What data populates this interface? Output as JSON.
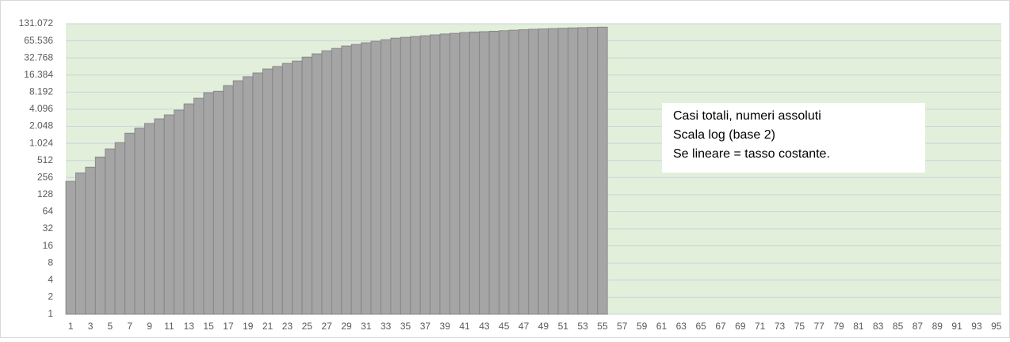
{
  "chart_data": {
    "type": "bar",
    "categories": [
      "1",
      null,
      "3",
      null,
      "5",
      null,
      "7",
      null,
      "9",
      null,
      "11",
      null,
      "13",
      null,
      "15",
      null,
      "17",
      null,
      "19",
      null,
      "21",
      null,
      "23",
      null,
      "25",
      null,
      "27",
      null,
      "29",
      null,
      "31",
      null,
      "33",
      null,
      "35",
      null,
      "37",
      null,
      "39",
      null,
      "41",
      null,
      "43",
      null,
      "45",
      null,
      "47",
      null,
      "49",
      null,
      "51",
      null,
      "53",
      null,
      "55",
      null,
      "57",
      null,
      "59",
      null,
      "61",
      null,
      "63",
      null,
      "65",
      null,
      "67",
      null,
      "69",
      null,
      "71",
      null,
      "73",
      null,
      "75",
      null,
      "77",
      null,
      "79",
      null,
      "81",
      null,
      "83",
      null,
      "85",
      null,
      "87",
      null,
      "89",
      null,
      "91",
      null,
      "93",
      null,
      "95"
    ],
    "values": [
      220,
      310,
      390,
      590,
      820,
      1060,
      1550,
      1900,
      2300,
      2780,
      3260,
      3950,
      5100,
      6400,
      8000,
      8500,
      10700,
      13000,
      15300,
      17900,
      21000,
      23200,
      26300,
      28900,
      33900,
      38700,
      43900,
      48300,
      53300,
      56700,
      60700,
      64600,
      68800,
      73300,
      75700,
      78300,
      80800,
      83600,
      86600,
      89000,
      92000,
      94000,
      95300,
      97000,
      99000,
      101000,
      103000,
      105000,
      106500,
      108000,
      109500,
      111000,
      112000,
      113000,
      114500,
      null,
      null,
      null,
      null,
      null,
      null,
      null,
      null,
      null,
      null,
      null,
      null,
      null,
      null,
      null,
      null,
      null,
      null,
      null,
      null,
      null,
      null,
      null,
      null,
      null,
      null,
      null,
      null,
      null,
      null,
      null,
      null,
      null,
      null,
      null,
      null,
      null,
      null,
      null,
      null
    ],
    "color": "#a5a5a5",
    "yscale": "log",
    "log_base": 2,
    "ylim": [
      1,
      131072
    ],
    "yticks": [
      1,
      2,
      4,
      8,
      16,
      32,
      64,
      128,
      256,
      512,
      {
        "value": 1024,
        "label": "1.024"
      },
      {
        "value": 2048,
        "label": "2.048"
      },
      {
        "value": 4096,
        "label": "4.096"
      },
      {
        "value": 8192,
        "label": "8.192"
      },
      {
        "value": 16384,
        "label": "16.384"
      },
      {
        "value": 32768,
        "label": "32.768"
      },
      {
        "value": 65536,
        "label": "65.536"
      },
      {
        "value": 131072,
        "label": "131.072"
      }
    ],
    "grid": true,
    "annotation": [
      "Casi totali, numeri assoluti",
      "Scala log (base 2)",
      "Se lineare = tasso costante."
    ]
  }
}
